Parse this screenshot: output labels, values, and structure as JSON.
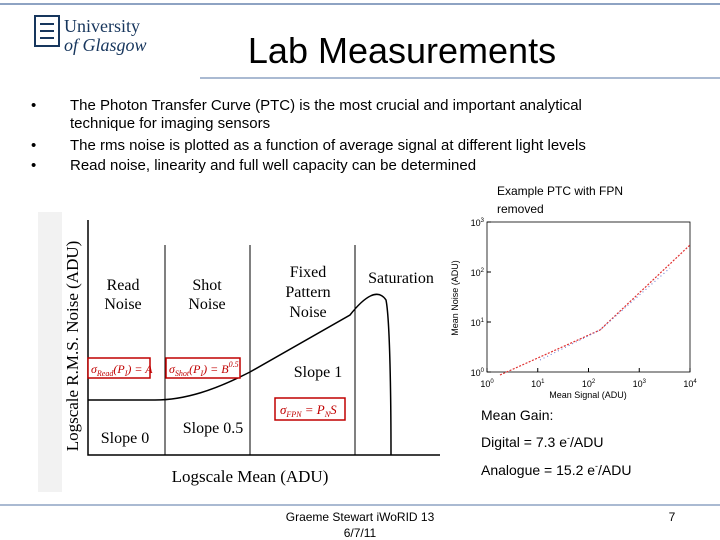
{
  "logo": {
    "line1": "University",
    "line2": "of Glasgow"
  },
  "header": {
    "title": "Lab Measurements"
  },
  "bullets": [
    [
      "The Photon Transfer Curve (PTC) is the most crucial and important analytical",
      "technique for imaging sensors"
    ],
    [
      "The rms noise is plotted as a function of average signal at different light levels"
    ],
    [
      "Read noise, linearity and full well capacity can be determined"
    ]
  ],
  "diagram": {
    "y_label": "Logscale R.M.S. Noise (ADU)",
    "x_label": "Logscale Mean (ADU)",
    "regions": [
      [
        "Read",
        "Noise"
      ],
      [
        "Shot",
        "Noise"
      ],
      [
        "Fixed",
        "Pattern",
        "Noise"
      ],
      [
        "Saturation"
      ]
    ],
    "slopes": [
      "Slope 0",
      "Slope 0.5",
      "Slope 1"
    ],
    "equations": [
      [
        "σ",
        "Read",
        "(P",
        "I",
        ") = A"
      ],
      [
        "σ",
        "Shot",
        "(P",
        "I",
        ") = B",
        "0.5"
      ],
      [
        "σ",
        "FPN",
        " = P",
        "N",
        "S"
      ]
    ]
  },
  "example": {
    "caption": [
      "Example PTC with FPN",
      "removed"
    ],
    "y_label": "Mean Noise (ADU)",
    "x_label": "Mean Signal (ADU)",
    "x_ticks": [
      [
        "10",
        "0"
      ],
      [
        "10",
        "1"
      ],
      [
        "10",
        "2"
      ],
      [
        "10",
        "3"
      ],
      [
        "10",
        "4"
      ]
    ],
    "y_ticks": [
      [
        "10",
        "0"
      ],
      [
        "10",
        "1"
      ],
      [
        "10",
        "2"
      ],
      [
        "10",
        "3"
      ]
    ]
  },
  "gain": {
    "heading": "Mean Gain:",
    "digital": [
      "Digital = 7.3 e",
      "-",
      "/ADU"
    ],
    "analogue": [
      "Analogue = 15.2 e",
      "-",
      "/ADU"
    ]
  },
  "footer": {
    "author": "Graeme Stewart iWoRID 13",
    "date": "6/7/11",
    "page": "7"
  }
}
